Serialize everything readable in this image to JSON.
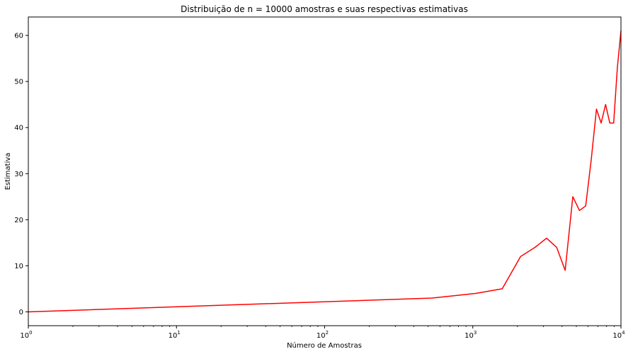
{
  "chart_data": {
    "type": "line",
    "title": "Distribuição de n = 10000 amostras e suas respectivas estimativas",
    "xlabel": "Número de Amostras",
    "ylabel": "Estimativa",
    "xscale": "log",
    "xlim": [
      1,
      10000
    ],
    "ylim": [
      -3,
      64
    ],
    "grid": false,
    "legend": "none",
    "x_ticks": [
      {
        "value": 1,
        "base": "10",
        "exp": "0"
      },
      {
        "value": 10,
        "base": "10",
        "exp": "1"
      },
      {
        "value": 100,
        "base": "10",
        "exp": "2"
      },
      {
        "value": 1000,
        "base": "10",
        "exp": "3"
      },
      {
        "value": 10000,
        "base": "10",
        "exp": "4"
      }
    ],
    "y_ticks": [
      0,
      10,
      20,
      30,
      40,
      50,
      60
    ],
    "series": [
      {
        "color": "#ff0000",
        "x": [
          1,
          530,
          1050,
          1580,
          2100,
          2630,
          3150,
          3680,
          4200,
          4730,
          5250,
          5780,
          6300,
          6830,
          7350,
          7880,
          8400,
          8930,
          9450,
          10000
        ],
        "y": [
          0,
          3,
          4,
          5,
          12,
          14,
          16,
          14,
          9,
          25,
          22,
          23,
          33,
          44,
          41,
          45,
          41,
          41,
          53,
          61
        ]
      }
    ]
  }
}
